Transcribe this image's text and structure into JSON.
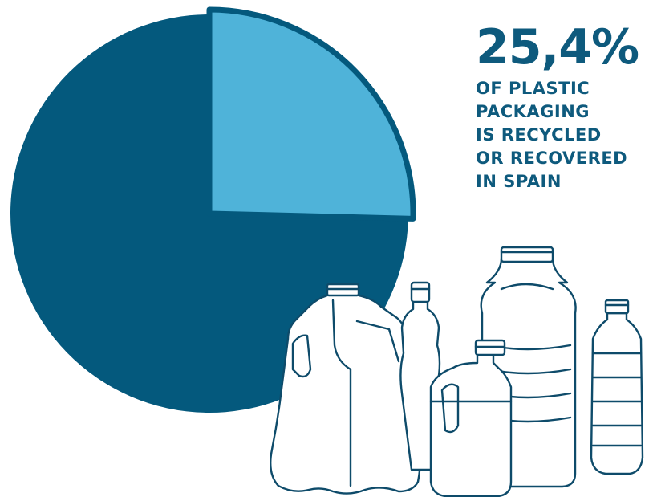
{
  "colors": {
    "remainder": "#04597d",
    "highlight": "#4fb3d9",
    "text": "#0e5a7d",
    "outline": "#0e4b6a"
  },
  "stat": {
    "value": "25,4%",
    "caption_lines": [
      "OF PLASTIC",
      "PACKAGING",
      "IS RECYCLED",
      "OR RECOVERED",
      "IN SPAIN"
    ]
  },
  "chart_data": {
    "type": "pie",
    "slices": [
      {
        "value": 25.4,
        "color": "#4fb3d9",
        "highlighted": true
      },
      {
        "value": 74.6,
        "color": "#04597d",
        "highlighted": false
      }
    ],
    "title": "",
    "legend": "none"
  },
  "illustration": {
    "icon": "plastic-bottles-icon"
  }
}
